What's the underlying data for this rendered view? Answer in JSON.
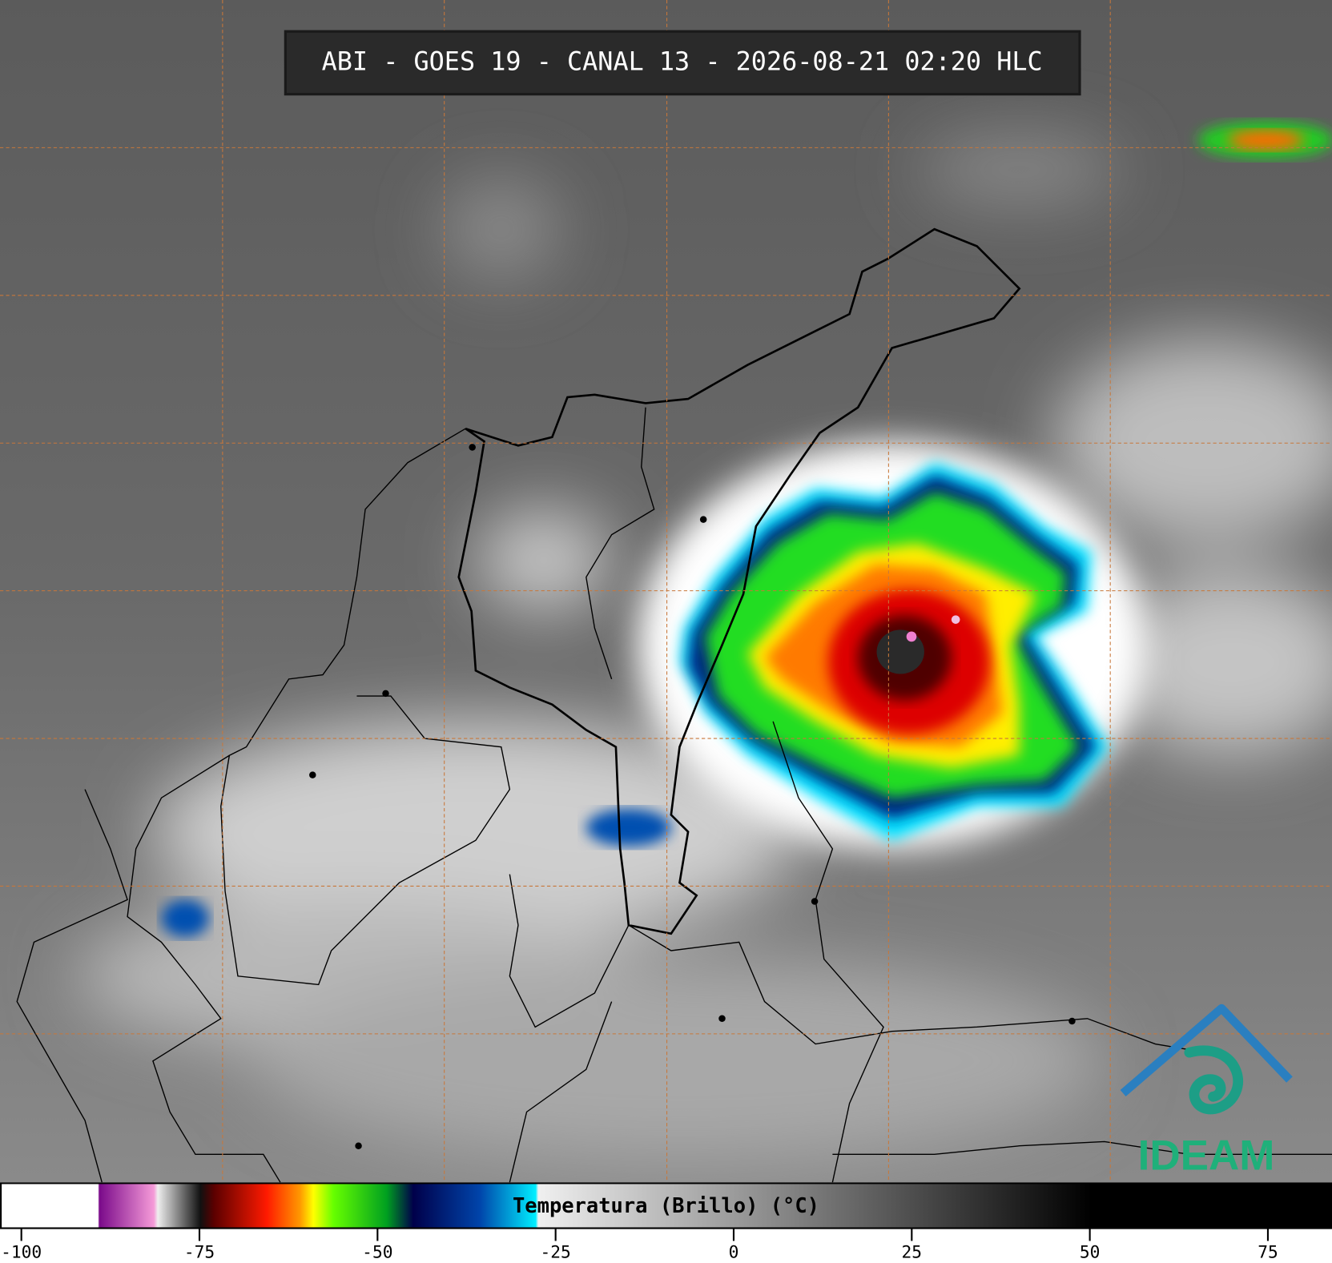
{
  "header": {
    "title": "ABI - GOES 19 - CANAL 13 - 2026-08-21 02:20 HLC"
  },
  "colorbar": {
    "label": "Temperatura (Brillo) (°C)",
    "lim": [
      -103,
      84
    ],
    "ticks": [
      -100,
      -75,
      -50,
      -25,
      0,
      25,
      50,
      75
    ]
  },
  "logo": {
    "text": "IDEAM"
  }
}
